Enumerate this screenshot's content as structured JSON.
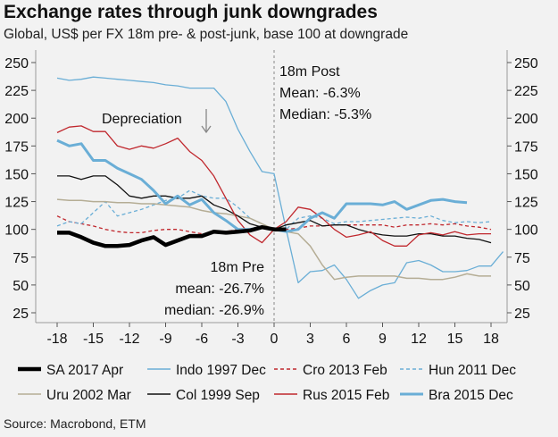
{
  "chart_data": {
    "type": "line",
    "title": "Exchange rates through junk downgrades",
    "subtitle": "Global, US$ per FX 18m pre- & post-junk, base 100 at downgrade",
    "source": "Source: Macrobond, ETM",
    "xlim": [
      -18,
      18
    ],
    "ylim": [
      25,
      250
    ],
    "xticks": [
      -18,
      -15,
      -12,
      -9,
      -6,
      -3,
      0,
      3,
      6,
      9,
      12,
      15,
      18
    ],
    "yticks": [
      25,
      50,
      75,
      100,
      125,
      150,
      175,
      200,
      225,
      250
    ],
    "grid": false,
    "legend_position": "bottom",
    "annotations": {
      "depreciation": "Depreciation",
      "pre_title": "18m Pre",
      "pre_mean": "mean: -26.7%",
      "pre_median": "median: -26.9%",
      "post_title": "18m Post",
      "post_mean": "Mean: -6.3%",
      "post_median": "Median: -5.3%"
    },
    "x_start": -18,
    "series": [
      {
        "name": "SA 2017 Apr",
        "color": "#000000",
        "width": 4.5,
        "dash": "",
        "values": [
          97,
          97,
          93,
          88,
          85,
          85,
          86,
          90,
          93,
          86,
          90,
          94,
          94,
          98,
          97,
          98,
          99,
          102,
          100,
          100
        ]
      },
      {
        "name": "Indo 1997 Dec",
        "color": "#6aaed6",
        "width": 1.3,
        "dash": "",
        "values": [
          236,
          234,
          235,
          237,
          236,
          235,
          234,
          233,
          232,
          230,
          229,
          227,
          227,
          227,
          215,
          190,
          170,
          152,
          150,
          100,
          52,
          62,
          63,
          68,
          55,
          38,
          45,
          50,
          52,
          70,
          72,
          68,
          62,
          62,
          63,
          67,
          67,
          80
        ]
      },
      {
        "name": "Cro 2013 Feb",
        "color": "#c0272d",
        "width": 1.3,
        "dash": "4,3",
        "values": [
          112,
          107,
          105,
          103,
          100,
          98,
          97,
          97,
          99,
          100,
          100,
          98,
          96,
          97,
          98,
          100,
          100,
          101,
          100,
          100,
          101,
          103,
          103,
          104,
          104,
          104,
          104,
          104,
          102,
          104,
          104,
          105,
          104,
          105,
          103,
          102,
          100
        ]
      },
      {
        "name": "Hun 2011 Dec",
        "color": "#6aaed6",
        "width": 1.3,
        "dash": "4,3",
        "values": [
          103,
          107,
          105,
          115,
          125,
          112,
          115,
          118,
          122,
          126,
          128,
          135,
          130,
          128,
          128,
          120,
          110,
          105,
          100,
          100,
          110,
          112,
          110,
          105,
          107,
          107,
          108,
          109,
          110,
          111,
          110,
          112,
          108,
          106,
          107,
          106,
          107
        ]
      },
      {
        "name": "Uru 2002 Mar",
        "color": "#b5ad95",
        "width": 1.5,
        "dash": "",
        "values": [
          127,
          126,
          126,
          125,
          125,
          124,
          124,
          123,
          123,
          122,
          121,
          120,
          117,
          115,
          114,
          112,
          110,
          105,
          100,
          98,
          96,
          85,
          68,
          55,
          57,
          58,
          58,
          58,
          58,
          56,
          56,
          55,
          55,
          57,
          60,
          58,
          58
        ]
      },
      {
        "name": "Col 1999 Sep",
        "color": "#111111",
        "width": 1.3,
        "dash": "",
        "values": [
          148,
          148,
          145,
          148,
          148,
          140,
          130,
          128,
          130,
          130,
          128,
          128,
          130,
          122,
          118,
          112,
          105,
          102,
          100,
          104,
          106,
          108,
          103,
          104,
          104,
          100,
          97,
          95,
          94,
          94,
          96,
          96,
          94,
          94,
          92,
          91,
          88
        ]
      },
      {
        "name": "Rus 2015 Feb",
        "color": "#c0272d",
        "width": 1.3,
        "dash": "",
        "values": [
          187,
          192,
          193,
          188,
          188,
          175,
          172,
          175,
          173,
          177,
          182,
          170,
          162,
          148,
          128,
          108,
          95,
          88,
          100,
          107,
          120,
          118,
          110,
          100,
          93,
          95,
          98,
          90,
          85,
          85,
          95,
          97,
          95,
          98,
          95,
          96,
          96
        ]
      },
      {
        "name": "Bra 2015 Dec",
        "color": "#6aaed6",
        "width": 3,
        "dash": "",
        "values": [
          180,
          175,
          177,
          162,
          162,
          155,
          150,
          145,
          135,
          123,
          130,
          122,
          127,
          115,
          108,
          100,
          100,
          102,
          100,
          98,
          100,
          110,
          115,
          110,
          123,
          123,
          123,
          122,
          125,
          118,
          122,
          126,
          127,
          125,
          124
        ]
      }
    ]
  }
}
